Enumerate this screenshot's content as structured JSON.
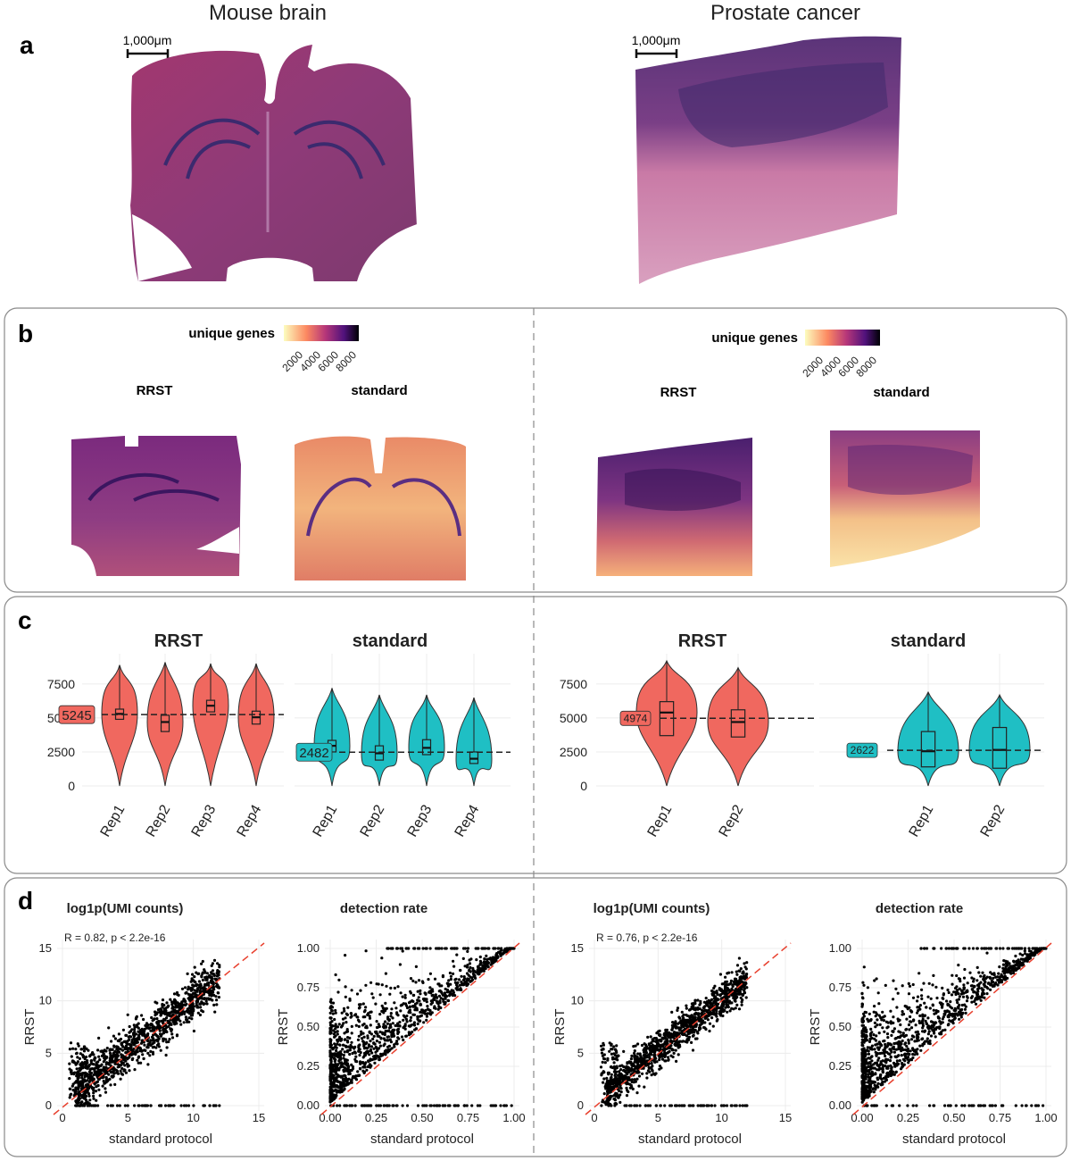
{
  "columns": {
    "left": "Mouse brain",
    "right": "Prostate cancer"
  },
  "panel_letters": {
    "a": "a",
    "b": "b",
    "c": "c",
    "d": "d"
  },
  "panel_a": {
    "scalebar": "1,000μm"
  },
  "panel_b": {
    "legend_title": "unique genes",
    "legend_ticks": [
      "2000",
      "4000",
      "6000",
      "8000"
    ],
    "legend_colors": [
      "#fcfdbf",
      "#fc8961",
      "#b73779",
      "#51127c",
      "#000004"
    ],
    "label_rrst": "RRST",
    "label_standard": "standard"
  },
  "panel_c": {
    "yticks": [
      "0",
      "2500",
      "5000",
      "7500"
    ],
    "colors": {
      "rrst": "#f0685f",
      "standard": "#1fbfc4"
    },
    "chart_data": [
      {
        "type": "violin",
        "title": "RRST",
        "tissue": "Mouse brain",
        "categories": [
          "Rep1",
          "Rep2",
          "Rep3",
          "Rep4"
        ],
        "medians": [
          5300,
          4700,
          5900,
          5050
        ],
        "q1": [
          4900,
          4000,
          5450,
          4550
        ],
        "q3": [
          5650,
          5200,
          6300,
          5500
        ],
        "max": [
          8900,
          9100,
          9000,
          9000
        ],
        "mean_line": 5245,
        "mean_label": "5245",
        "ylim": [
          0,
          9200
        ]
      },
      {
        "type": "violin",
        "title": "standard",
        "tissue": "Mouse brain",
        "categories": [
          "Rep1",
          "Rep2",
          "Rep3",
          "Rep4"
        ],
        "medians": [
          2950,
          2400,
          2800,
          2000
        ],
        "q1": [
          2500,
          1900,
          2300,
          1650
        ],
        "q3": [
          3350,
          2950,
          3400,
          2500
        ],
        "max": [
          7200,
          6700,
          6700,
          6500
        ],
        "mean_line": 2482,
        "mean_label": "2482",
        "ylim": [
          0,
          9200
        ]
      },
      {
        "type": "violin",
        "title": "RRST",
        "tissue": "Prostate cancer",
        "categories": [
          "Rep1",
          "Rep2"
        ],
        "medians": [
          5400,
          4700
        ],
        "q1": [
          3700,
          3600
        ],
        "q3": [
          6200,
          5600
        ],
        "max": [
          9200,
          8700
        ],
        "mean_line": 4974,
        "mean_label": "4974",
        "ylim": [
          0,
          9200
        ]
      },
      {
        "type": "violin",
        "title": "standard",
        "tissue": "Prostate cancer",
        "categories": [
          "Rep1",
          "Rep2"
        ],
        "medians": [
          2550,
          2650
        ],
        "q1": [
          1400,
          1300
        ],
        "q3": [
          4000,
          4300
        ],
        "max": [
          6900,
          6700
        ],
        "mean_line": 2622,
        "mean_label": "2622",
        "ylim": [
          0,
          9200
        ]
      }
    ]
  },
  "panel_d": {
    "ylabel": "RRST",
    "xlabel": "standard protocol",
    "chart_data": [
      {
        "type": "scatter",
        "title": "log1p(UMI counts)",
        "tissue": "Mouse brain",
        "stat": "R = 0.82, p < 2.2e-16",
        "xlim": [
          0,
          15
        ],
        "ylim": [
          0,
          15
        ],
        "xticks": [
          "0",
          "5",
          "10",
          "15"
        ],
        "yticks": [
          "0",
          "5",
          "10",
          "15"
        ]
      },
      {
        "type": "scatter",
        "title": "detection rate",
        "tissue": "Mouse brain",
        "stat": "",
        "xlim": [
          0,
          1
        ],
        "ylim": [
          0,
          1
        ],
        "xticks": [
          "0.00",
          "0.25",
          "0.50",
          "0.75",
          "1.00"
        ],
        "yticks": [
          "0.00",
          "0.25",
          "0.50",
          "0.75",
          "1.00"
        ]
      },
      {
        "type": "scatter",
        "title": "log1p(UMI counts)",
        "tissue": "Prostate cancer",
        "stat": "R = 0.76, p < 2.2e-16",
        "xlim": [
          0,
          15
        ],
        "ylim": [
          0,
          15
        ],
        "xticks": [
          "0",
          "5",
          "10",
          "15"
        ],
        "yticks": [
          "0",
          "5",
          "10",
          "15"
        ]
      },
      {
        "type": "scatter",
        "title": "detection rate",
        "tissue": "Prostate cancer",
        "stat": "",
        "xlim": [
          0,
          1
        ],
        "ylim": [
          0,
          1
        ],
        "xticks": [
          "0.00",
          "0.25",
          "0.50",
          "0.75",
          "1.00"
        ],
        "yticks": [
          "0.00",
          "0.25",
          "0.50",
          "0.75",
          "1.00"
        ]
      }
    ]
  }
}
